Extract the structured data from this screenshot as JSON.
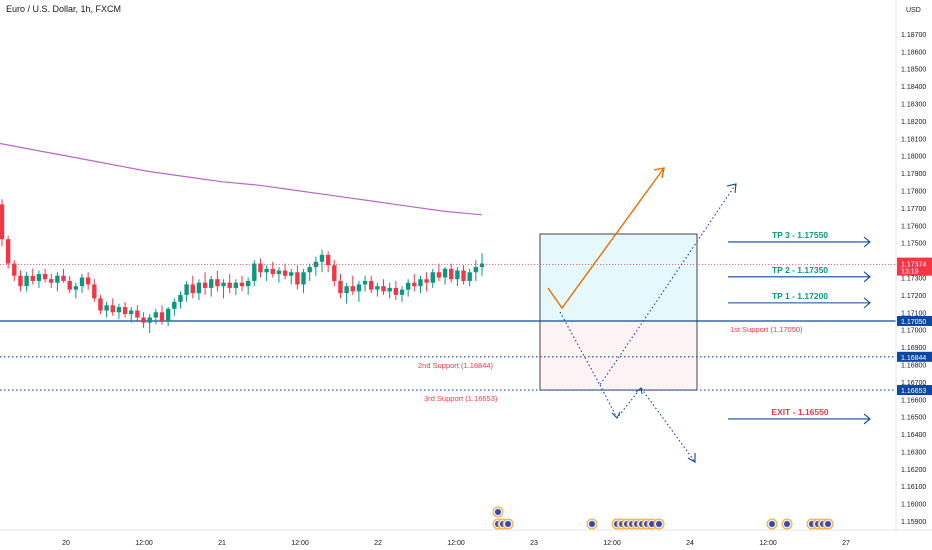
{
  "chart_data": {
    "type": "candlestick",
    "title": "Euro / U.S. Dollar, 1h, FXCM",
    "currency": "USD",
    "y_ticks": [
      "1.18700",
      "1.18600",
      "1.18500",
      "1.18400",
      "1.18300",
      "1.18200",
      "1.18100",
      "1.18000",
      "1.17900",
      "1.17800",
      "1.17700",
      "1.17600",
      "1.17500",
      "1.17400",
      "1.17300",
      "1.17200",
      "1.17100",
      "1.17000",
      "1.16900",
      "1.16800",
      "1.16700",
      "1.16600",
      "1.16500",
      "1.16400",
      "1.16300",
      "1.16200",
      "1.16100",
      "1.16000",
      "1.15900"
    ],
    "x_ticks": [
      "20",
      "12:00",
      "21",
      "12:00",
      "22",
      "12:00",
      "23",
      "12:00",
      "24",
      "12:00",
      "27"
    ],
    "ylim": [
      1.1586,
      1.1878
    ],
    "current_price": {
      "value": "1.17374",
      "countdown": "13:19",
      "color": "#f23645"
    },
    "levels": [
      {
        "name": "first_support",
        "price": 1.1705,
        "axis_label": "1.17050",
        "text": "1st Support (1.17050)",
        "style": "solid",
        "color": "#0d47a1"
      },
      {
        "name": "second_support",
        "price": 1.16844,
        "axis_label": "1.16844",
        "text": "2nd Support (1.16844)",
        "style": "dotted",
        "color": "#0d47a1"
      },
      {
        "name": "third_support",
        "price": 1.16653,
        "axis_label": "1.16653",
        "text": "3rd Support (1.16653)",
        "style": "dotted",
        "color": "#0d47a1"
      }
    ],
    "targets": [
      {
        "label": "TP 3 - 1.17550",
        "price": 1.1755,
        "color": "#089981"
      },
      {
        "label": "TP 2 - 1.17350",
        "price": 1.1735,
        "color": "#089981"
      },
      {
        "label": "TP 1 - 1.17200",
        "price": 1.172,
        "color": "#089981"
      },
      {
        "label": "EXIT - 1.16550",
        "price": 1.1655,
        "color": "#f23645"
      }
    ],
    "position_box": {
      "entry": 1.1705,
      "target": 1.1755,
      "stop": 1.16653
    },
    "moving_average": {
      "color": "#ba68c8",
      "values": [
        1.1807,
        1.1803,
        1.1799,
        1.1795,
        1.1791,
        1.1788,
        1.1785,
        1.1783,
        1.178,
        1.1777,
        1.1774,
        1.1771,
        1.1768,
        1.1766
      ]
    },
    "candles": [
      [
        1.1772,
        1.1775,
        1.1748,
        1.1752
      ],
      [
        1.1752,
        1.1754,
        1.1735,
        1.1738
      ],
      [
        1.1738,
        1.174,
        1.1728,
        1.1731
      ],
      [
        1.1731,
        1.1734,
        1.1722,
        1.1725
      ],
      [
        1.1725,
        1.1733,
        1.1722,
        1.1731
      ],
      [
        1.1731,
        1.1735,
        1.1726,
        1.1728
      ],
      [
        1.1728,
        1.1734,
        1.1724,
        1.1732
      ],
      [
        1.1732,
        1.1735,
        1.1727,
        1.1729
      ],
      [
        1.1729,
        1.1732,
        1.1724,
        1.1727
      ],
      [
        1.1727,
        1.1733,
        1.1722,
        1.1731
      ],
      [
        1.1731,
        1.1735,
        1.1727,
        1.1728
      ],
      [
        1.1728,
        1.1731,
        1.1721,
        1.1723
      ],
      [
        1.1723,
        1.1727,
        1.1718,
        1.1725
      ],
      [
        1.1725,
        1.1732,
        1.1721,
        1.173
      ],
      [
        1.173,
        1.1733,
        1.1723,
        1.1726
      ],
      [
        1.1726,
        1.1729,
        1.1716,
        1.1718
      ],
      [
        1.1718,
        1.172,
        1.1709,
        1.1711
      ],
      [
        1.1711,
        1.1716,
        1.1707,
        1.1714
      ],
      [
        1.1714,
        1.1718,
        1.1708,
        1.171
      ],
      [
        1.171,
        1.1715,
        1.1706,
        1.1713
      ],
      [
        1.1713,
        1.1716,
        1.1707,
        1.1709
      ],
      [
        1.1709,
        1.1713,
        1.1704,
        1.1711
      ],
      [
        1.1711,
        1.1714,
        1.1705,
        1.1707
      ],
      [
        1.1707,
        1.171,
        1.1701,
        1.1704
      ],
      [
        1.1704,
        1.1709,
        1.1698,
        1.1707
      ],
      [
        1.1707,
        1.1712,
        1.1703,
        1.171
      ],
      [
        1.171,
        1.1714,
        1.1703,
        1.1705
      ],
      [
        1.1705,
        1.1713,
        1.1702,
        1.1712
      ],
      [
        1.1712,
        1.1718,
        1.1708,
        1.1716
      ],
      [
        1.1716,
        1.1722,
        1.1712,
        1.172
      ],
      [
        1.172,
        1.1728,
        1.1716,
        1.1726
      ],
      [
        1.1726,
        1.1731,
        1.1718,
        1.1721
      ],
      [
        1.1721,
        1.1729,
        1.1717,
        1.1727
      ],
      [
        1.1727,
        1.1733,
        1.172,
        1.1724
      ],
      [
        1.1724,
        1.1731,
        1.1719,
        1.1729
      ],
      [
        1.1729,
        1.1734,
        1.1722,
        1.1725
      ],
      [
        1.1725,
        1.1729,
        1.1718,
        1.1727
      ],
      [
        1.1727,
        1.1732,
        1.1721,
        1.1724
      ],
      [
        1.1724,
        1.1729,
        1.172,
        1.1727
      ],
      [
        1.1727,
        1.1731,
        1.1722,
        1.1725
      ],
      [
        1.1725,
        1.173,
        1.172,
        1.1728
      ],
      [
        1.1728,
        1.174,
        1.1725,
        1.1738
      ],
      [
        1.1738,
        1.1741,
        1.173,
        1.1733
      ],
      [
        1.1733,
        1.1737,
        1.1728,
        1.1735
      ],
      [
        1.1735,
        1.1739,
        1.173,
        1.1732
      ],
      [
        1.1732,
        1.1736,
        1.1727,
        1.1734
      ],
      [
        1.1734,
        1.1738,
        1.1729,
        1.1731
      ],
      [
        1.1731,
        1.1735,
        1.1726,
        1.1733
      ],
      [
        1.1733,
        1.1737,
        1.1723,
        1.1726
      ],
      [
        1.1726,
        1.1735,
        1.1721,
        1.1733
      ],
      [
        1.1733,
        1.1738,
        1.1728,
        1.1736
      ],
      [
        1.1736,
        1.1742,
        1.1731,
        1.1739
      ],
      [
        1.1739,
        1.1746,
        1.1733,
        1.1743
      ],
      [
        1.1743,
        1.1745,
        1.1733,
        1.1737
      ],
      [
        1.1737,
        1.174,
        1.1725,
        1.1728
      ],
      [
        1.1728,
        1.1732,
        1.1718,
        1.1721
      ],
      [
        1.1721,
        1.1727,
        1.1715,
        1.1725
      ],
      [
        1.1725,
        1.1731,
        1.172,
        1.1722
      ],
      [
        1.1722,
        1.1728,
        1.1716,
        1.1726
      ],
      [
        1.1726,
        1.1731,
        1.1722,
        1.1728
      ],
      [
        1.1728,
        1.1731,
        1.1721,
        1.1723
      ],
      [
        1.1723,
        1.1727,
        1.1719,
        1.1725
      ],
      [
        1.1725,
        1.1729,
        1.172,
        1.1722
      ],
      [
        1.1722,
        1.1727,
        1.1718,
        1.1724
      ],
      [
        1.1724,
        1.1728,
        1.1717,
        1.172
      ],
      [
        1.172,
        1.1725,
        1.1716,
        1.1723
      ],
      [
        1.1723,
        1.1729,
        1.1719,
        1.1727
      ],
      [
        1.1727,
        1.1732,
        1.1722,
        1.1725
      ],
      [
        1.1725,
        1.1731,
        1.1721,
        1.1729
      ],
      [
        1.1729,
        1.1733,
        1.1722,
        1.1727
      ],
      [
        1.1727,
        1.1735,
        1.1724,
        1.1733
      ],
      [
        1.1733,
        1.1738,
        1.1728,
        1.173
      ],
      [
        1.173,
        1.1736,
        1.1726,
        1.1735
      ],
      [
        1.1735,
        1.1738,
        1.1727,
        1.1729
      ],
      [
        1.1729,
        1.1736,
        1.1725,
        1.1734
      ],
      [
        1.1734,
        1.1737,
        1.1726,
        1.1728
      ],
      [
        1.1728,
        1.1735,
        1.1725,
        1.1733
      ],
      [
        1.1733,
        1.174,
        1.1728,
        1.1736
      ],
      [
        1.1736,
        1.1744,
        1.1731,
        1.1738
      ]
    ]
  },
  "events": {
    "label": "economic-events"
  }
}
